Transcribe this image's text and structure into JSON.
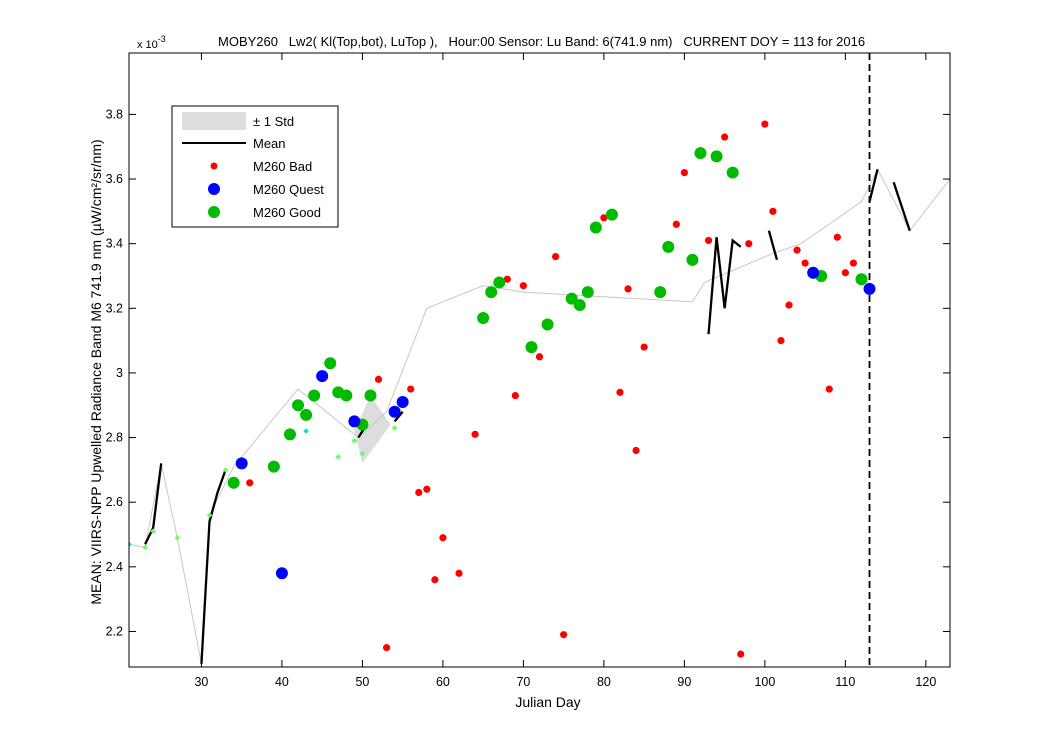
{
  "chart_data": {
    "type": "scatter",
    "title": "MOBY260   Lw2( Kl(Top,bot), LuTop ),   Hour:00 Sensor: Lu Band: 6(741.9 nm)   CURRENT DOY = 113 for 2016",
    "xlabel": "Julian Day",
    "ylabel": "MEAN: VIIRS-NPP Upwelled Radiance Band M6 741.9 nm (µW/cm²/sr/nm)",
    "y_exponent_label": "x 10",
    "y_exponent_power": "-3",
    "xlim": [
      21,
      123
    ],
    "ylim": [
      2.09,
      3.99
    ],
    "xticks": [
      30,
      40,
      50,
      60,
      70,
      80,
      90,
      100,
      110,
      120
    ],
    "yticks": [
      2.2,
      2.4,
      2.6,
      2.8,
      3.0,
      3.2,
      3.4,
      3.6,
      3.8
    ],
    "ytick_labels": [
      "2.2",
      "2.4",
      "2.6",
      "2.8",
      "3",
      "3.2",
      "3.4",
      "3.6",
      "3.8"
    ],
    "current_doy": 113,
    "grid": false,
    "legend_position": "top-left",
    "legend": [
      {
        "label": "± 1 Std",
        "marker": "patch"
      },
      {
        "label": "Mean",
        "marker": "line"
      },
      {
        "label": "M260 Bad",
        "marker": "small-dot"
      },
      {
        "label": "M260 Quest",
        "marker": "dot"
      },
      {
        "label": "M260 Good",
        "marker": "dot"
      }
    ],
    "colors": {
      "bad": "#ff0000",
      "quest": "#0000ff",
      "good": "#00bb00",
      "mean": "#000000",
      "std": "#dddddd",
      "gray_line": "#c8c8c8",
      "cyan": "#00e5e5",
      "light_green": "#66ff66"
    },
    "std_band": [
      [
        49,
        2.82
      ],
      [
        51,
        2.93
      ],
      [
        53.5,
        2.84
      ],
      [
        50,
        2.72
      ]
    ],
    "gray_line": [
      [
        21,
        2.47
      ],
      [
        23,
        2.46
      ],
      [
        25,
        2.72
      ],
      [
        27,
        2.49
      ],
      [
        30,
        2.1
      ],
      [
        31,
        2.56
      ],
      [
        34,
        2.71
      ],
      [
        42,
        2.95
      ],
      [
        49.5,
        2.8
      ],
      [
        53,
        2.88
      ],
      [
        58,
        3.2
      ],
      [
        65,
        3.27
      ],
      [
        70,
        3.25
      ],
      [
        91,
        3.22
      ],
      [
        92.5,
        3.28
      ],
      [
        101,
        3.37
      ],
      [
        104.5,
        3.4
      ],
      [
        112,
        3.53
      ],
      [
        114,
        3.63
      ],
      [
        118,
        3.44
      ],
      [
        123,
        3.6
      ]
    ],
    "mean_segments": [
      [
        [
          23,
          2.47
        ],
        [
          24,
          2.52
        ],
        [
          25,
          2.72
        ]
      ],
      [
        [
          30,
          2.1
        ],
        [
          31,
          2.54
        ],
        [
          32,
          2.63
        ],
        [
          33,
          2.7
        ]
      ],
      [
        [
          49.5,
          2.8
        ],
        [
          50.5,
          2.84
        ]
      ],
      [
        [
          54,
          2.85
        ],
        [
          55,
          2.88
        ]
      ],
      [
        [
          93,
          3.12
        ],
        [
          94,
          3.42
        ],
        [
          95,
          3.2
        ],
        [
          96,
          3.41
        ],
        [
          97,
          3.39
        ]
      ],
      [
        [
          100.5,
          3.44
        ],
        [
          101.5,
          3.35
        ]
      ],
      [
        [
          113,
          3.53
        ],
        [
          114,
          3.63
        ]
      ],
      [
        [
          116,
          3.59
        ],
        [
          118,
          3.44
        ]
      ]
    ],
    "cyan_points": [
      [
        21,
        2.47
      ],
      [
        43,
        2.82
      ]
    ],
    "light_green_points": [
      [
        23,
        2.46
      ],
      [
        24,
        2.51
      ],
      [
        27,
        2.49
      ],
      [
        31,
        2.56
      ],
      [
        33,
        2.7
      ],
      [
        47,
        2.74
      ],
      [
        49,
        2.79
      ],
      [
        50,
        2.75
      ],
      [
        54,
        2.83
      ]
    ],
    "bad_points": [
      [
        36,
        2.66
      ],
      [
        52,
        2.98
      ],
      [
        53,
        2.15
      ],
      [
        56,
        2.95
      ],
      [
        57,
        2.63
      ],
      [
        58,
        2.64
      ],
      [
        59,
        2.36
      ],
      [
        60,
        2.49
      ],
      [
        62,
        2.38
      ],
      [
        64,
        2.81
      ],
      [
        68,
        3.29
      ],
      [
        69,
        2.93
      ],
      [
        70,
        3.27
      ],
      [
        72,
        3.05
      ],
      [
        74,
        3.36
      ],
      [
        75,
        2.19
      ],
      [
        80,
        3.48
      ],
      [
        82,
        2.94
      ],
      [
        83,
        3.26
      ],
      [
        84,
        2.76
      ],
      [
        85,
        3.08
      ],
      [
        89,
        3.46
      ],
      [
        90,
        3.62
      ],
      [
        93,
        3.41
      ],
      [
        95,
        3.73
      ],
      [
        97,
        2.13
      ],
      [
        98,
        3.4
      ],
      [
        100,
        3.77
      ],
      [
        101,
        3.5
      ],
      [
        102,
        3.1
      ],
      [
        103,
        3.21
      ],
      [
        104,
        3.38
      ],
      [
        105,
        3.34
      ],
      [
        108,
        2.95
      ],
      [
        109,
        3.42
      ],
      [
        110,
        3.31
      ],
      [
        111,
        3.34
      ]
    ],
    "quest_points": [
      [
        35,
        2.72
      ],
      [
        40,
        2.38
      ],
      [
        45,
        2.99
      ],
      [
        49,
        2.85
      ],
      [
        54,
        2.88
      ],
      [
        55,
        2.91
      ],
      [
        106,
        3.31
      ],
      [
        113,
        3.26
      ]
    ],
    "good_points": [
      [
        34,
        2.66
      ],
      [
        39,
        2.71
      ],
      [
        41,
        2.81
      ],
      [
        42,
        2.9
      ],
      [
        43,
        2.87
      ],
      [
        44,
        2.93
      ],
      [
        46,
        3.03
      ],
      [
        47,
        2.94
      ],
      [
        48,
        2.93
      ],
      [
        50,
        2.84
      ],
      [
        51,
        2.93
      ],
      [
        65,
        3.17
      ],
      [
        66,
        3.25
      ],
      [
        67,
        3.28
      ],
      [
        71,
        3.08
      ],
      [
        73,
        3.15
      ],
      [
        76,
        3.23
      ],
      [
        77,
        3.21
      ],
      [
        78,
        3.25
      ],
      [
        79,
        3.45
      ],
      [
        81,
        3.49
      ],
      [
        87,
        3.25
      ],
      [
        88,
        3.39
      ],
      [
        91,
        3.35
      ],
      [
        92,
        3.68
      ],
      [
        94,
        3.67
      ],
      [
        96,
        3.62
      ],
      [
        107,
        3.3
      ],
      [
        112,
        3.29
      ]
    ]
  }
}
